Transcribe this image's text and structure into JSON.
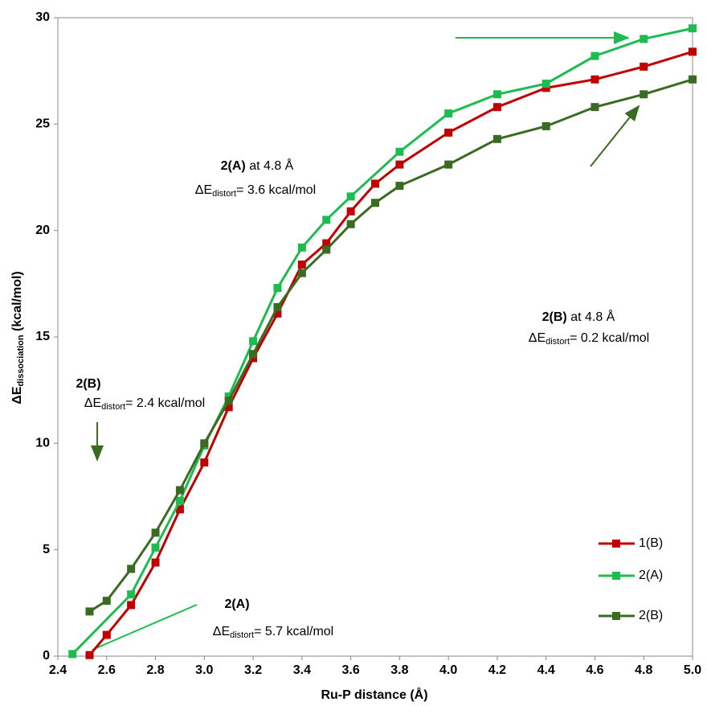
{
  "chart_data": {
    "type": "line",
    "x_label": "Ru-P distance (Å)",
    "y_label": {
      "symbol": "ΔE",
      "subscript": "dissociation",
      "rest": " (kcal/mol)"
    },
    "xlim": [
      2.4,
      5.0
    ],
    "xticks": [
      2.4,
      2.6,
      2.8,
      {
        "value": 3,
        "label": "3.0"
      },
      3.2,
      3.4,
      3.6,
      3.8,
      {
        "value": 4,
        "label": "4.0"
      },
      4.2,
      4.4,
      4.6,
      4.8,
      {
        "value": 5,
        "label": "5.0"
      }
    ],
    "ylim": [
      0,
      30
    ],
    "yticks": [
      0,
      5,
      10,
      15,
      20,
      25,
      30
    ],
    "grid": false,
    "legend": "lower right",
    "series": [
      {
        "name": "1(B)",
        "color": "#c00000",
        "x": [
          2.53,
          2.6,
          2.7,
          2.8,
          2.9,
          3.0,
          3.1,
          3.2,
          3.3,
          3.4,
          3.5,
          3.6,
          3.7,
          3.8,
          4.0,
          4.2,
          4.4,
          4.6,
          4.8,
          5.0
        ],
        "values": [
          0.05,
          1.0,
          2.4,
          4.4,
          6.9,
          9.1,
          11.7,
          14.0,
          16.1,
          18.4,
          19.4,
          20.9,
          22.2,
          23.1,
          24.6,
          25.8,
          26.7,
          27.1,
          27.7,
          28.4
        ]
      },
      {
        "name": "2(A)",
        "color": "#1ebc50",
        "x": [
          2.46,
          2.7,
          2.8,
          2.9,
          3.0,
          3.1,
          3.2,
          3.3,
          3.4,
          3.5,
          3.6,
          3.8,
          4.0,
          4.2,
          4.4,
          4.6,
          4.8,
          5.0
        ],
        "values": [
          0.1,
          2.9,
          5.1,
          7.3,
          9.9,
          12.2,
          14.8,
          17.3,
          19.2,
          20.5,
          21.6,
          23.7,
          25.5,
          26.4,
          26.9,
          28.2,
          29.0,
          29.5
        ]
      },
      {
        "name": "2(B)",
        "color": "#3b6b22",
        "x": [
          2.53,
          2.6,
          2.7,
          2.8,
          2.9,
          3.0,
          3.1,
          3.2,
          3.3,
          3.4,
          3.5,
          3.6,
          3.7,
          3.8,
          4.0,
          4.2,
          4.4,
          4.6,
          4.8,
          5.0
        ],
        "values": [
          2.1,
          2.6,
          4.1,
          5.8,
          7.8,
          10.0,
          12.0,
          14.2,
          16.4,
          18.0,
          19.1,
          20.3,
          21.3,
          22.1,
          23.1,
          24.3,
          24.9,
          25.8,
          26.4,
          27.1
        ]
      }
    ],
    "annotations": [
      {
        "title_bold": "2(A)",
        "title_rest": " at 4.8 Å",
        "symbol": "ΔE",
        "subscript": "distort",
        "rest": "= 3.6 kcal/mol"
      },
      {
        "title_bold": "2(B)",
        "title_rest": " at 4.8 Å",
        "symbol": "ΔE",
        "subscript": "distort",
        "rest": "= 0.2 kcal/mol"
      },
      {
        "title_bold": "2(B)",
        "symbol": "ΔE",
        "subscript": "distort",
        "rest": "= 2.4 kcal/mol"
      },
      {
        "title_bold": "2(A)",
        "symbol": "ΔE",
        "subscript": "distort",
        "rest": "= 5.7 kcal/mol"
      }
    ]
  }
}
